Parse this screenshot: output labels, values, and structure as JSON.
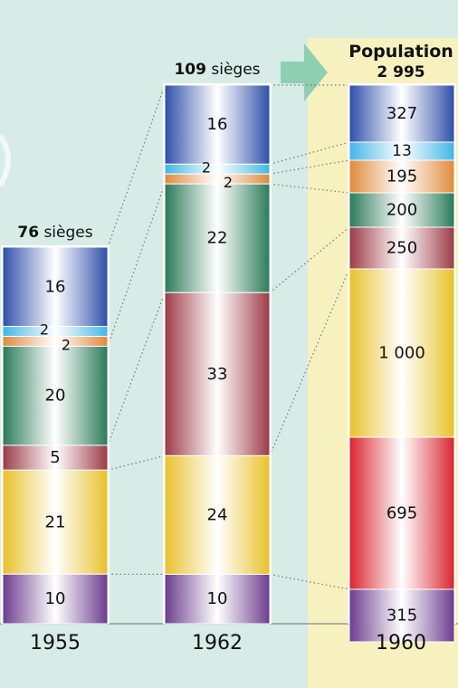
{
  "chart_data": {
    "type": "bar",
    "title": "",
    "xlabel": "",
    "ylabel": "",
    "grid": false,
    "bars": [
      {
        "year": "1955",
        "total_value": "76",
        "total_unit": "sièges",
        "segments": [
          {
            "value": 16,
            "label": "16",
            "color": "#2f4fa8"
          },
          {
            "value": 2,
            "label": "2",
            "color": "#3fb6e6"
          },
          {
            "value": 2,
            "label": "2",
            "color": "#e08a3a"
          },
          {
            "value": 20,
            "label": "20",
            "color": "#2a7a5a"
          },
          {
            "value": 5,
            "label": "5",
            "color": "#9b3a45"
          },
          {
            "value": 21,
            "label": "21",
            "color": "#e8c12a"
          },
          {
            "value": 10,
            "label": "10",
            "color": "#6b3c8e"
          }
        ]
      },
      {
        "year": "1962",
        "total_value": "109",
        "total_unit": "sièges",
        "segments": [
          {
            "value": 16,
            "label": "16",
            "color": "#2f4fa8"
          },
          {
            "value": 2,
            "label": "2",
            "color": "#3fb6e6"
          },
          {
            "value": 2,
            "label": "2",
            "color": "#e08a3a"
          },
          {
            "value": 22,
            "label": "22",
            "color": "#2a7a5a"
          },
          {
            "value": 33,
            "label": "33",
            "color": "#9b3a45"
          },
          {
            "value": 24,
            "label": "24",
            "color": "#e8c12a"
          },
          {
            "value": 10,
            "label": "10",
            "color": "#6b3c8e"
          }
        ]
      },
      {
        "year": "1960",
        "total_title": "Population",
        "total_value": "2 995",
        "segments": [
          {
            "value": 327,
            "label": "327",
            "color": "#2f4fa8"
          },
          {
            "value": 13,
            "label": "13",
            "color": "#3fb6e6"
          },
          {
            "value": 195,
            "label": "195",
            "color": "#e08a3a"
          },
          {
            "value": 200,
            "label": "200",
            "color": "#2a7a5a"
          },
          {
            "value": 250,
            "label": "250",
            "color": "#9b3a45"
          },
          {
            "value": 1000,
            "label": "1 000",
            "color": "#e8c12a"
          },
          {
            "value": 695,
            "label": "695",
            "color": "#d8232e"
          },
          {
            "value": 315,
            "label": "315",
            "color": "#6b3c8e"
          }
        ]
      }
    ]
  },
  "colors": {
    "background": "#d7ebe7",
    "highlight": "#f6f1bf",
    "arrow": "#8ecfb4"
  }
}
